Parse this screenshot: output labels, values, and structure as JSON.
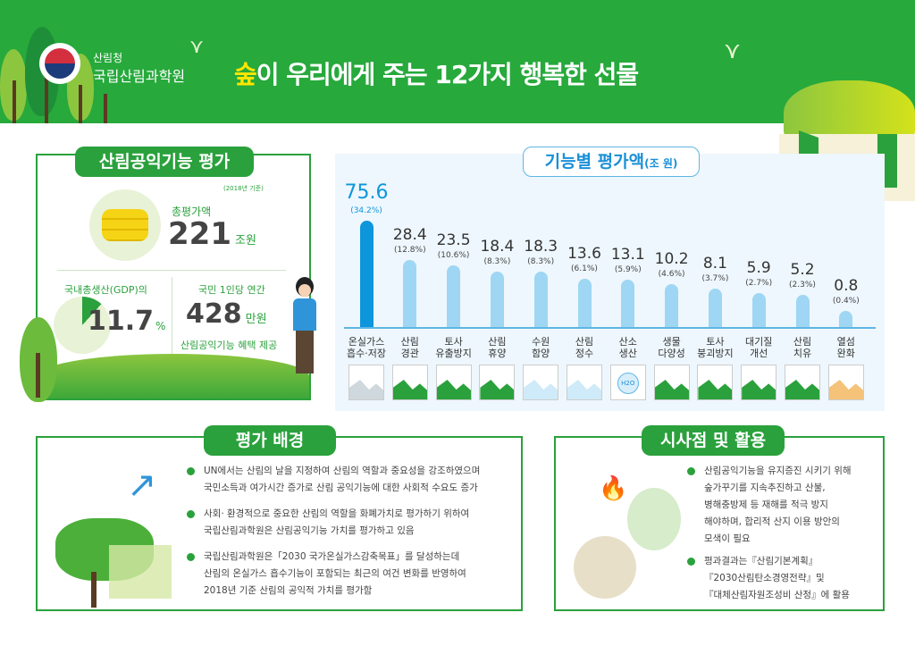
{
  "header": {
    "org_small": "산림청",
    "org": "국립산림과학원",
    "title_highlight": "숲",
    "title_rest": "이 우리에게 주는 12가지 행복한 선물"
  },
  "summary": {
    "title": "산림공익기능 평가",
    "basis": "(2018년 기준)",
    "total_label": "총평가액",
    "total_value": "221",
    "total_unit": "조원",
    "gdp_label": "국내총생산(GDP)의",
    "gdp_value": "11.7",
    "gdp_unit": "%",
    "gdp_fraction": 0.117,
    "per_capita_label": "국민 1인당 연간",
    "per_capita_value": "428",
    "per_capita_unit": "만원",
    "per_capita_note": "산림공익기능 혜택 제공"
  },
  "chart_data": {
    "type": "bar",
    "title": "기능별 평가액",
    "unit": "(조 원)",
    "categories": [
      [
        "온실가스",
        "흡수·저장"
      ],
      [
        "산림",
        "경관"
      ],
      [
        "토사",
        "유출방지"
      ],
      [
        "산림",
        "휴양"
      ],
      [
        "수원",
        "함양"
      ],
      [
        "산림",
        "정수"
      ],
      [
        "산소",
        "생산"
      ],
      [
        "생물",
        "다양성"
      ],
      [
        "토사",
        "붕괴방지"
      ],
      [
        "대기질",
        "개선"
      ],
      [
        "산림",
        "치유"
      ],
      [
        "열섬",
        "완화"
      ]
    ],
    "values": [
      75.6,
      28.4,
      23.5,
      18.4,
      18.3,
      13.6,
      13.1,
      10.2,
      8.1,
      5.9,
      5.2,
      0.8
    ],
    "value_labels": [
      "75.6",
      "28.4",
      "23.5",
      "18.4",
      "18.3",
      "13.6",
      "13.1",
      "10.2",
      "8.1",
      "5.9",
      "5.2",
      "0.8"
    ],
    "percent_labels": [
      "(34.2%)",
      "(12.8%)",
      "(10.6%)",
      "(8.3%)",
      "(8.3%)",
      "(6.1%)",
      "(5.9%)",
      "(4.6%)",
      "(3.7%)",
      "(2.7%)",
      "(2.3%)",
      "(0.4%)"
    ],
    "icons": [
      "power-plant-icon",
      "landscape-icon",
      "erosion-icon",
      "house-icon",
      "water-icon",
      "drop-icon",
      "h2o-icon",
      "plant-icon",
      "landslide-icon",
      "earth-icon",
      "healing-icon",
      "city-heat-icon"
    ],
    "icon_text": {
      "h2o": "H2O"
    },
    "colors": {
      "highlight": "#0e96dc",
      "bar": "#9fd6f3"
    }
  },
  "background": {
    "title": "평가 배경",
    "bullets": [
      [
        "UN에서는 산림의 날을 지정하여 산림의 역할과 중요성을 강조하였으며",
        "국민소득과 여가시간 증가로 산림 공익기능에 대한 사회적 수요도 증가"
      ],
      [
        "사회· 환경적으로 중요한 산림의 역할을 화폐가치로 평가하기 위하여",
        "국립산림과학원은 산림공익기능 가치를 평가하고 있음"
      ],
      [
        "국립산림과학원은「2030 국가온실가스감축목표」를 달성하는데",
        "산림의 온실가스 흡수기능이 포함되는 최근의 여건 변화를 반영하여",
        "2018년 기준 산림의 공익적 가치를 평가함"
      ]
    ]
  },
  "implications": {
    "title": "시사점 및 활용",
    "bullets": [
      [
        "산림공익기능을 유지증진 시키기 위해",
        "숲가꾸기를 지속추진하고 산불,",
        "병해충방제 등 재해를 적극 방지",
        "해야하며, 합리적 산지 이용 방안의",
        "모색이 필요"
      ],
      [
        "평과결과는『산림기본계획』",
        "『2030산림탄소경영전략』및",
        "『대체산림자원조성비 산정』에 활용"
      ]
    ]
  }
}
